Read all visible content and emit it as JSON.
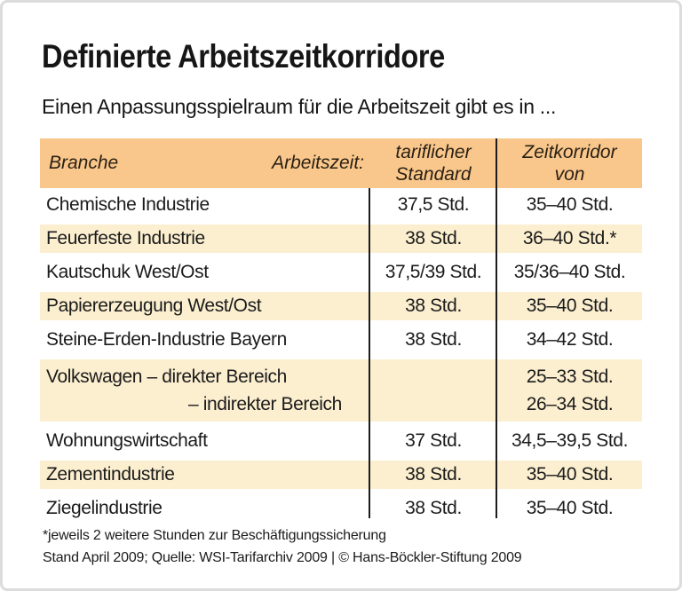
{
  "page": {
    "title": "Definierte Arbeitszeitkorridore",
    "subtitle": "Einen Anpassungsspielraum für die Arbeitszeit gibt es in ..."
  },
  "table": {
    "header": {
      "branche": "Branche",
      "arbeitszeit": "Arbeitszeit:",
      "standard_line1": "tariflicher",
      "standard_line2": "Standard",
      "korridor_line1": "Zeitkorridor",
      "korridor_line2": "von"
    }
  },
  "footnotes": {
    "asterisk": "*jeweils 2 weitere Stunden zur Beschäftigungssicherung",
    "source": "Stand April 2009; Quelle: WSI-Tarifarchiv 2009 | © Hans-Böckler-Stiftung 2009"
  },
  "colors": {
    "header_bg": "#f9c78b",
    "row_shaded_bg": "#fcefd0",
    "divider_line": "#1c1c1c",
    "card_border": "#dcdcdc",
    "text": "#1b1b1b"
  },
  "chart_data": {
    "type": "table",
    "title": "Definierte Arbeitszeitkorridore",
    "subtitle": "Einen Anpassungsspielraum für die Arbeitszeit gibt es in ...",
    "columns": [
      "Branche",
      "Arbeitszeit: tariflicher Standard",
      "Zeitkorridor von"
    ],
    "rows": [
      {
        "branche": "Chemische Industrie",
        "standard": "37,5 Std.",
        "korridor": "35–40 Std."
      },
      {
        "branche": "Feuerfeste Industrie",
        "standard": "38 Std.",
        "korridor": "36–40 Std.*"
      },
      {
        "branche": "Kautschuk West/Ost",
        "standard": "37,5/39 Std.",
        "korridor": "35/36–40 Std."
      },
      {
        "branche": "Papiererzeugung West/Ost",
        "standard": "38 Std.",
        "korridor": "35–40 Std."
      },
      {
        "branche": "Steine-Erden-Industrie Bayern",
        "standard": "38 Std.",
        "korridor": "34–42 Std."
      },
      {
        "branche": "Volkswagen – direkter Bereich",
        "branche2": "– indirekter Bereich",
        "standard": "",
        "korridor": "25–33 Std.",
        "korridor2": "26–34 Std."
      },
      {
        "branche": "Wohnungswirtschaft",
        "standard": "37 Std.",
        "korridor": "34,5–39,5 Std."
      },
      {
        "branche": "Zementindustrie",
        "standard": "38 Std.",
        "korridor": "35–40 Std."
      },
      {
        "branche": "Ziegelindustrie",
        "standard": "38 Std.",
        "korridor": "35–40 Std."
      }
    ],
    "footnote": "*jeweils 2 weitere Stunden zur Beschäftigungssicherung",
    "source": "Stand April 2009; Quelle: WSI-Tarifarchiv 2009 | © Hans-Böckler-Stiftung 2009"
  }
}
